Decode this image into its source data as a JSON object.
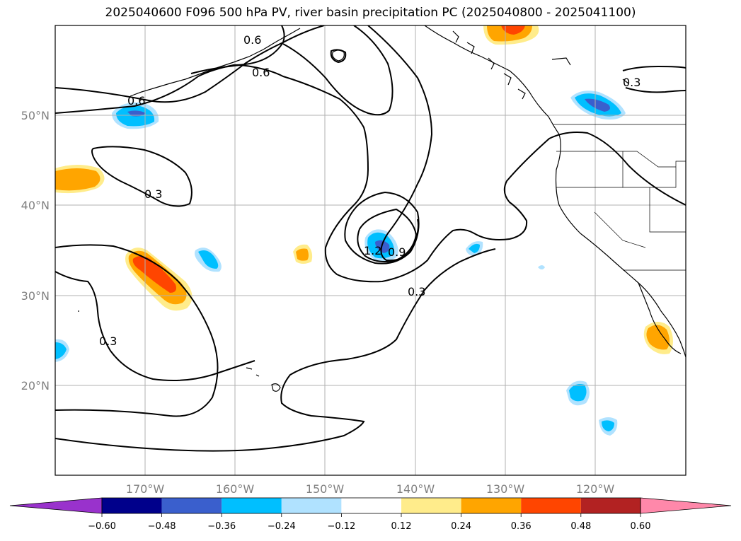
{
  "title": "2025040600 F096 500 hPa PV, river basin precipitation PC (2025040800 - 2025041100)",
  "map": {
    "lat_labels": [
      "50°N",
      "40°N",
      "30°N",
      "20°N"
    ],
    "lon_labels": [
      "170°W",
      "160°W",
      "150°W",
      "140°W",
      "130°W",
      "120°W"
    ],
    "contour_labels": [
      "0.6",
      "0.6",
      "0.6",
      "0.3",
      "0.3",
      "0.3",
      "1.2",
      "0.9",
      "0.3"
    ]
  },
  "colorbar": {
    "ticks": [
      "−0.60",
      "−0.48",
      "−0.36",
      "−0.24",
      "−0.12",
      "0.12",
      "0.24",
      "0.36",
      "0.48",
      "0.60"
    ],
    "colors": [
      "#9932cc",
      "#00008b",
      "#3a5fcd",
      "#00bfff",
      "#b0e2ff",
      "#ffffff",
      "#ffec8b",
      "#ffa500",
      "#ff4500",
      "#b22222",
      "#ff88aa",
      "#ff88aa"
    ]
  }
}
